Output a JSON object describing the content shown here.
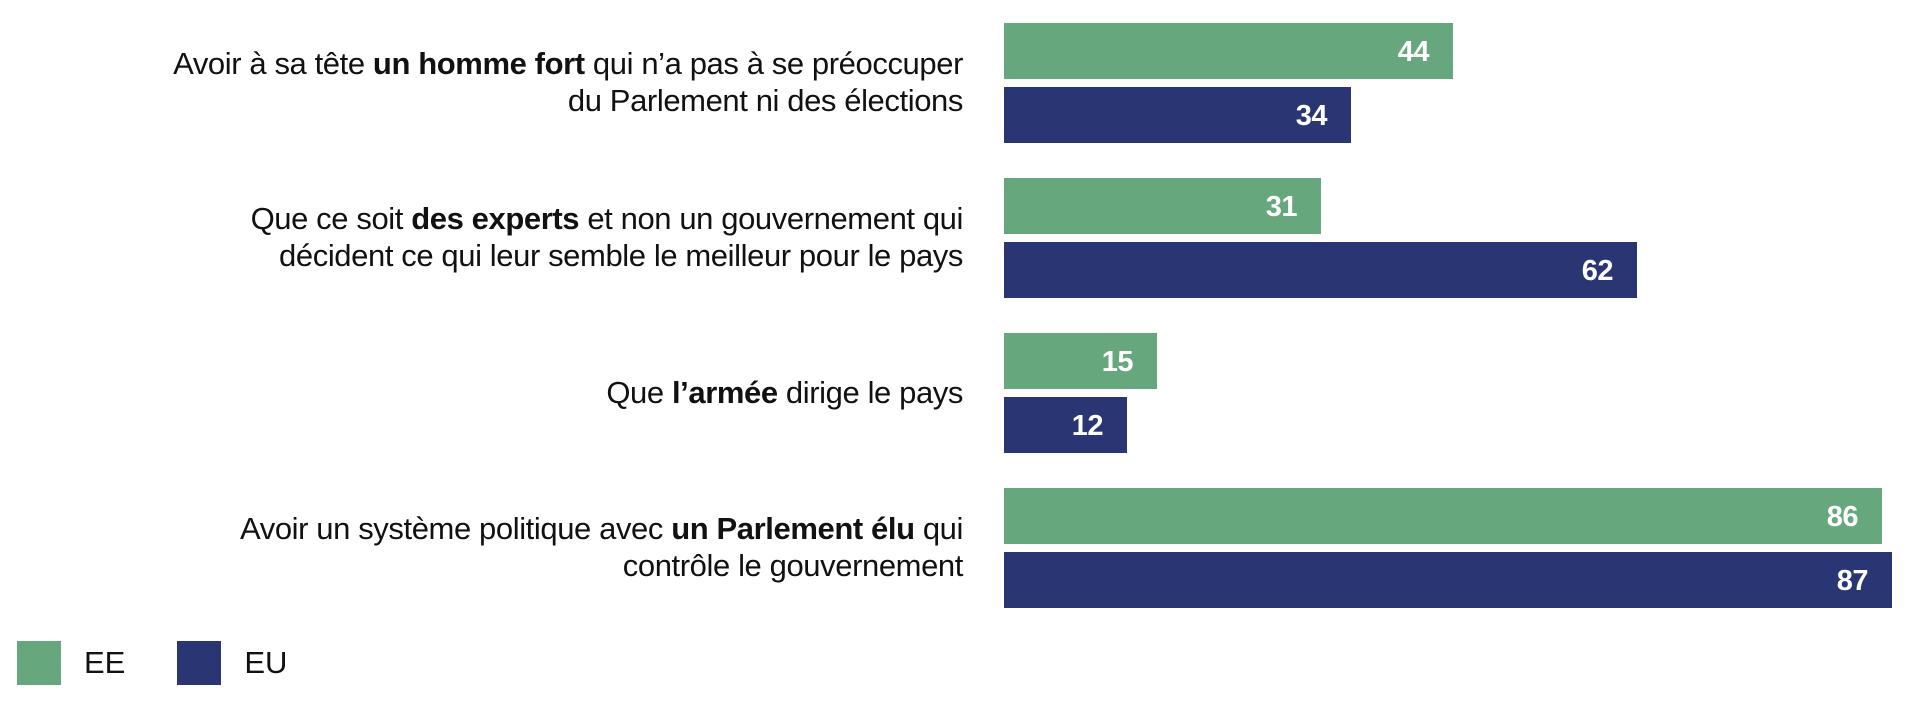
{
  "chart_data": {
    "type": "bar",
    "orientation": "horizontal",
    "title": "",
    "xlabel": "",
    "ylabel": "",
    "xlim": [
      0,
      100
    ],
    "grid": false,
    "legend_position": "bottom-left",
    "categories": [
      {
        "parts": [
          {
            "text": "Avoir à sa tête ",
            "bold": false
          },
          {
            "text": "un homme fort",
            "bold": true
          },
          {
            "text": " qui n’a pas à se préoccuper",
            "bold": false
          },
          {
            "text": "\n",
            "bold": false
          },
          {
            "text": "du Parlement ni des élections",
            "bold": false
          }
        ]
      },
      {
        "parts": [
          {
            "text": "Que ce soit ",
            "bold": false
          },
          {
            "text": "des experts",
            "bold": true
          },
          {
            "text": " et non un gouvernement qui",
            "bold": false
          },
          {
            "text": "\n",
            "bold": false
          },
          {
            "text": "décident ce qui leur semble le meilleur pour le pays",
            "bold": false
          }
        ]
      },
      {
        "parts": [
          {
            "text": "Que ",
            "bold": false
          },
          {
            "text": "l’armée",
            "bold": true
          },
          {
            "text": " dirige le pays",
            "bold": false
          }
        ]
      },
      {
        "parts": [
          {
            "text": "Avoir un système politique avec ",
            "bold": false
          },
          {
            "text": "un Parlement élu",
            "bold": true
          },
          {
            "text": " qui",
            "bold": false
          },
          {
            "text": "\n",
            "bold": false
          },
          {
            "text": "contrôle le gouvernement",
            "bold": false
          }
        ]
      }
    ],
    "series": [
      {
        "name": "EE",
        "color": "#66A77D",
        "values": [
          44,
          31,
          15,
          86
        ]
      },
      {
        "name": "EU",
        "color": "#2A3674",
        "values": [
          34,
          62,
          12,
          87
        ]
      }
    ],
    "data_labels": true
  },
  "legend": {
    "items": [
      {
        "label": "EE",
        "color": "#66A77D"
      },
      {
        "label": "EU",
        "color": "#2A3674"
      }
    ]
  }
}
